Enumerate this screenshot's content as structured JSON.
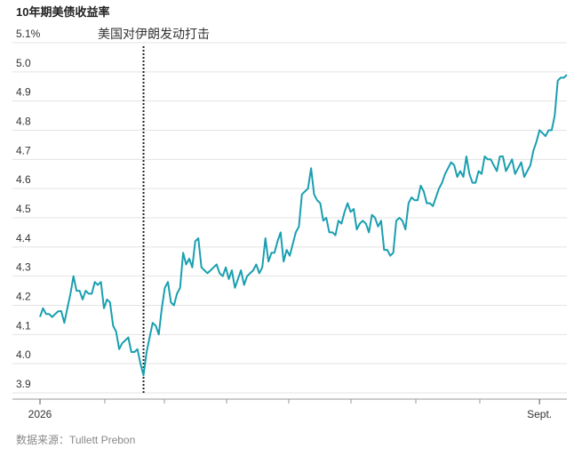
{
  "chart_data": {
    "type": "line",
    "title": "10年期美债收益率",
    "source": "数据来源：Tullett Prebon",
    "annotation": "美国对伊朗发动打击",
    "categories": [
      "2026",
      null,
      null,
      null,
      null,
      null,
      null,
      null,
      null,
      null,
      null,
      null,
      null,
      null,
      null,
      null,
      null,
      null,
      null,
      null,
      null,
      null,
      null,
      null,
      null,
      null,
      null,
      null,
      null,
      null,
      null,
      null,
      null,
      null,
      null,
      null,
      null,
      null,
      null,
      null,
      null,
      null,
      null,
      null,
      null,
      null,
      null,
      null,
      null,
      null,
      null,
      null,
      null,
      null,
      null,
      null,
      null,
      null,
      null,
      null,
      null,
      null,
      null,
      null,
      null,
      null,
      null,
      null,
      null,
      null,
      null,
      null,
      null,
      null,
      null,
      null,
      null,
      null,
      null,
      null,
      null,
      null,
      null,
      null,
      null,
      null,
      null,
      null,
      null,
      null,
      null,
      null,
      null,
      null,
      null,
      null,
      null,
      null,
      null,
      null,
      null,
      null,
      null,
      null,
      null,
      null,
      null,
      null,
      null,
      null,
      null,
      null,
      null,
      null,
      null,
      null,
      null,
      null,
      null,
      null,
      null,
      null,
      null,
      null,
      null,
      null,
      null,
      null,
      null,
      null,
      null,
      null,
      null,
      null,
      null,
      null,
      null,
      null,
      null,
      null,
      null,
      null,
      null,
      null,
      null,
      null,
      null,
      null,
      null,
      null,
      null,
      null,
      null,
      null,
      null,
      null,
      null,
      null,
      null,
      null,
      null,
      null,
      null,
      null,
      "Sept.",
      null,
      null,
      null,
      null,
      null,
      null,
      null,
      null,
      null
    ],
    "series": [
      {
        "color": "#1a9fb0",
        "values": [
          4.16,
          4.19,
          4.17,
          4.17,
          4.16,
          4.17,
          4.18,
          4.18,
          4.14,
          4.19,
          4.24,
          4.3,
          4.25,
          4.25,
          4.22,
          4.25,
          4.24,
          4.24,
          4.28,
          4.27,
          4.28,
          4.19,
          4.22,
          4.21,
          4.13,
          4.11,
          4.05,
          4.07,
          4.08,
          4.09,
          4.04,
          4.04,
          4.05,
          4.0,
          3.96,
          4.04,
          4.09,
          4.14,
          4.13,
          4.1,
          4.19,
          4.26,
          4.28,
          4.21,
          4.2,
          4.24,
          4.26,
          4.38,
          4.34,
          4.36,
          4.33,
          4.42,
          4.43,
          4.33,
          4.32,
          4.31,
          4.32,
          4.33,
          4.34,
          4.31,
          4.3,
          4.33,
          4.29,
          4.32,
          4.26,
          4.29,
          4.32,
          4.27,
          4.3,
          4.31,
          4.32,
          4.34,
          4.31,
          4.33,
          4.43,
          4.35,
          4.38,
          4.38,
          4.42,
          4.45,
          4.35,
          4.39,
          4.37,
          4.41,
          4.45,
          4.47,
          4.58,
          4.59,
          4.6,
          4.67,
          4.58,
          4.56,
          4.55,
          4.49,
          4.5,
          4.45,
          4.45,
          4.44,
          4.49,
          4.48,
          4.52,
          4.55,
          4.52,
          4.53,
          4.46,
          4.48,
          4.49,
          4.48,
          4.45,
          4.51,
          4.5,
          4.47,
          4.49,
          4.39,
          4.39,
          4.37,
          4.38,
          4.49,
          4.5,
          4.49,
          4.46,
          4.55,
          4.57,
          4.56,
          4.56,
          4.61,
          4.59,
          4.55,
          4.55,
          4.54,
          4.57,
          4.6,
          4.62,
          4.65,
          4.67,
          4.69,
          4.68,
          4.64,
          4.66,
          4.64,
          4.71,
          4.65,
          4.62,
          4.62,
          4.66,
          4.65,
          4.71,
          4.7,
          4.7,
          4.68,
          4.66,
          4.71,
          4.71,
          4.66,
          4.68,
          4.7,
          4.65,
          4.67,
          4.69,
          4.64,
          4.66,
          4.68,
          4.73,
          4.76,
          4.8,
          4.79,
          4.78,
          4.8,
          4.8,
          4.85,
          4.97,
          4.98,
          4.98,
          4.99
        ]
      }
    ],
    "ylim": [
      3.9,
      5.1
    ],
    "yticks": [
      3.9,
      {
        "value": 4.0,
        "label": "4.0"
      },
      4.1,
      4.2,
      4.3,
      4.4,
      4.5,
      4.6,
      4.7,
      4.8,
      4.9,
      {
        "value": 5.0,
        "label": "5.0"
      },
      {
        "value": 5.1,
        "label": "5.1%"
      }
    ],
    "grid": true
  }
}
